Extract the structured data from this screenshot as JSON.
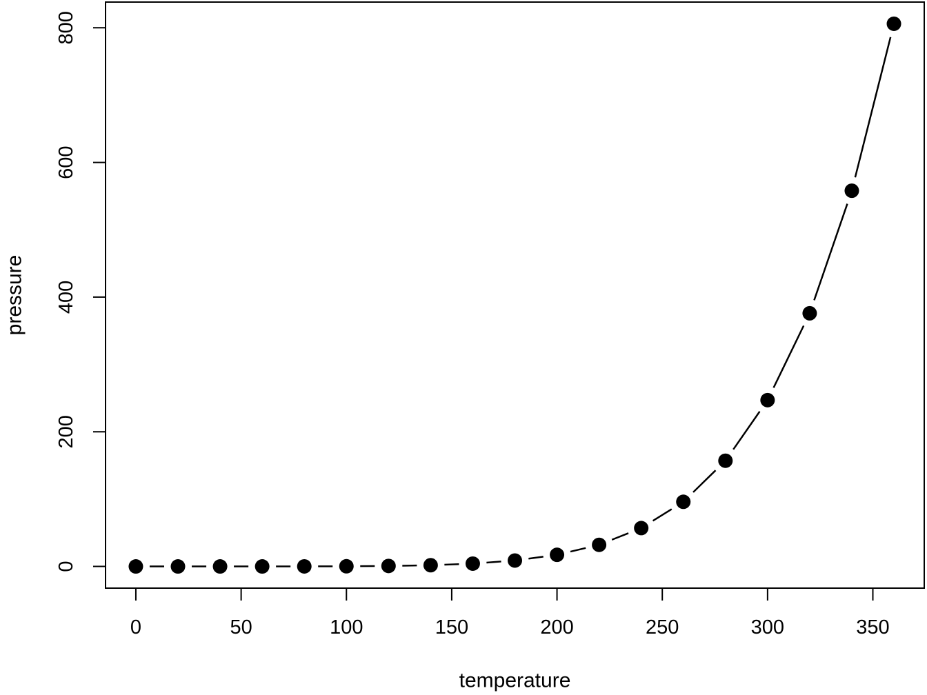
{
  "figure": {
    "background_color": "#ffffff",
    "foreground_color": "#000000"
  },
  "chart_data": {
    "type": "scatter",
    "title": "",
    "xlabel": "temperature",
    "ylabel": "pressure",
    "x": [
      0,
      20,
      40,
      60,
      80,
      100,
      120,
      140,
      160,
      180,
      200,
      220,
      240,
      260,
      280,
      300,
      320,
      340,
      360
    ],
    "y": [
      0.0002,
      0.0012,
      0.006,
      0.03,
      0.09,
      0.27,
      0.75,
      1.85,
      4.2,
      8.8,
      17.3,
      32.1,
      57.0,
      96.0,
      157.0,
      247.0,
      376.0,
      558.0,
      806.0
    ],
    "x_ticks": [
      0,
      50,
      100,
      150,
      200,
      250,
      300,
      350
    ],
    "y_ticks": [
      0,
      200,
      400,
      600,
      800
    ],
    "xlim": [
      -14.4,
      374.4
    ],
    "ylim": [
      -32.2,
      838.2
    ],
    "grid": false,
    "legend": "none",
    "marker": "filled-circle",
    "line_style": "solid segments with gaps at points (R type=b)",
    "point_color": "#000000",
    "line_color": "#000000",
    "y_tick_label_orientation": "rotated-90"
  }
}
